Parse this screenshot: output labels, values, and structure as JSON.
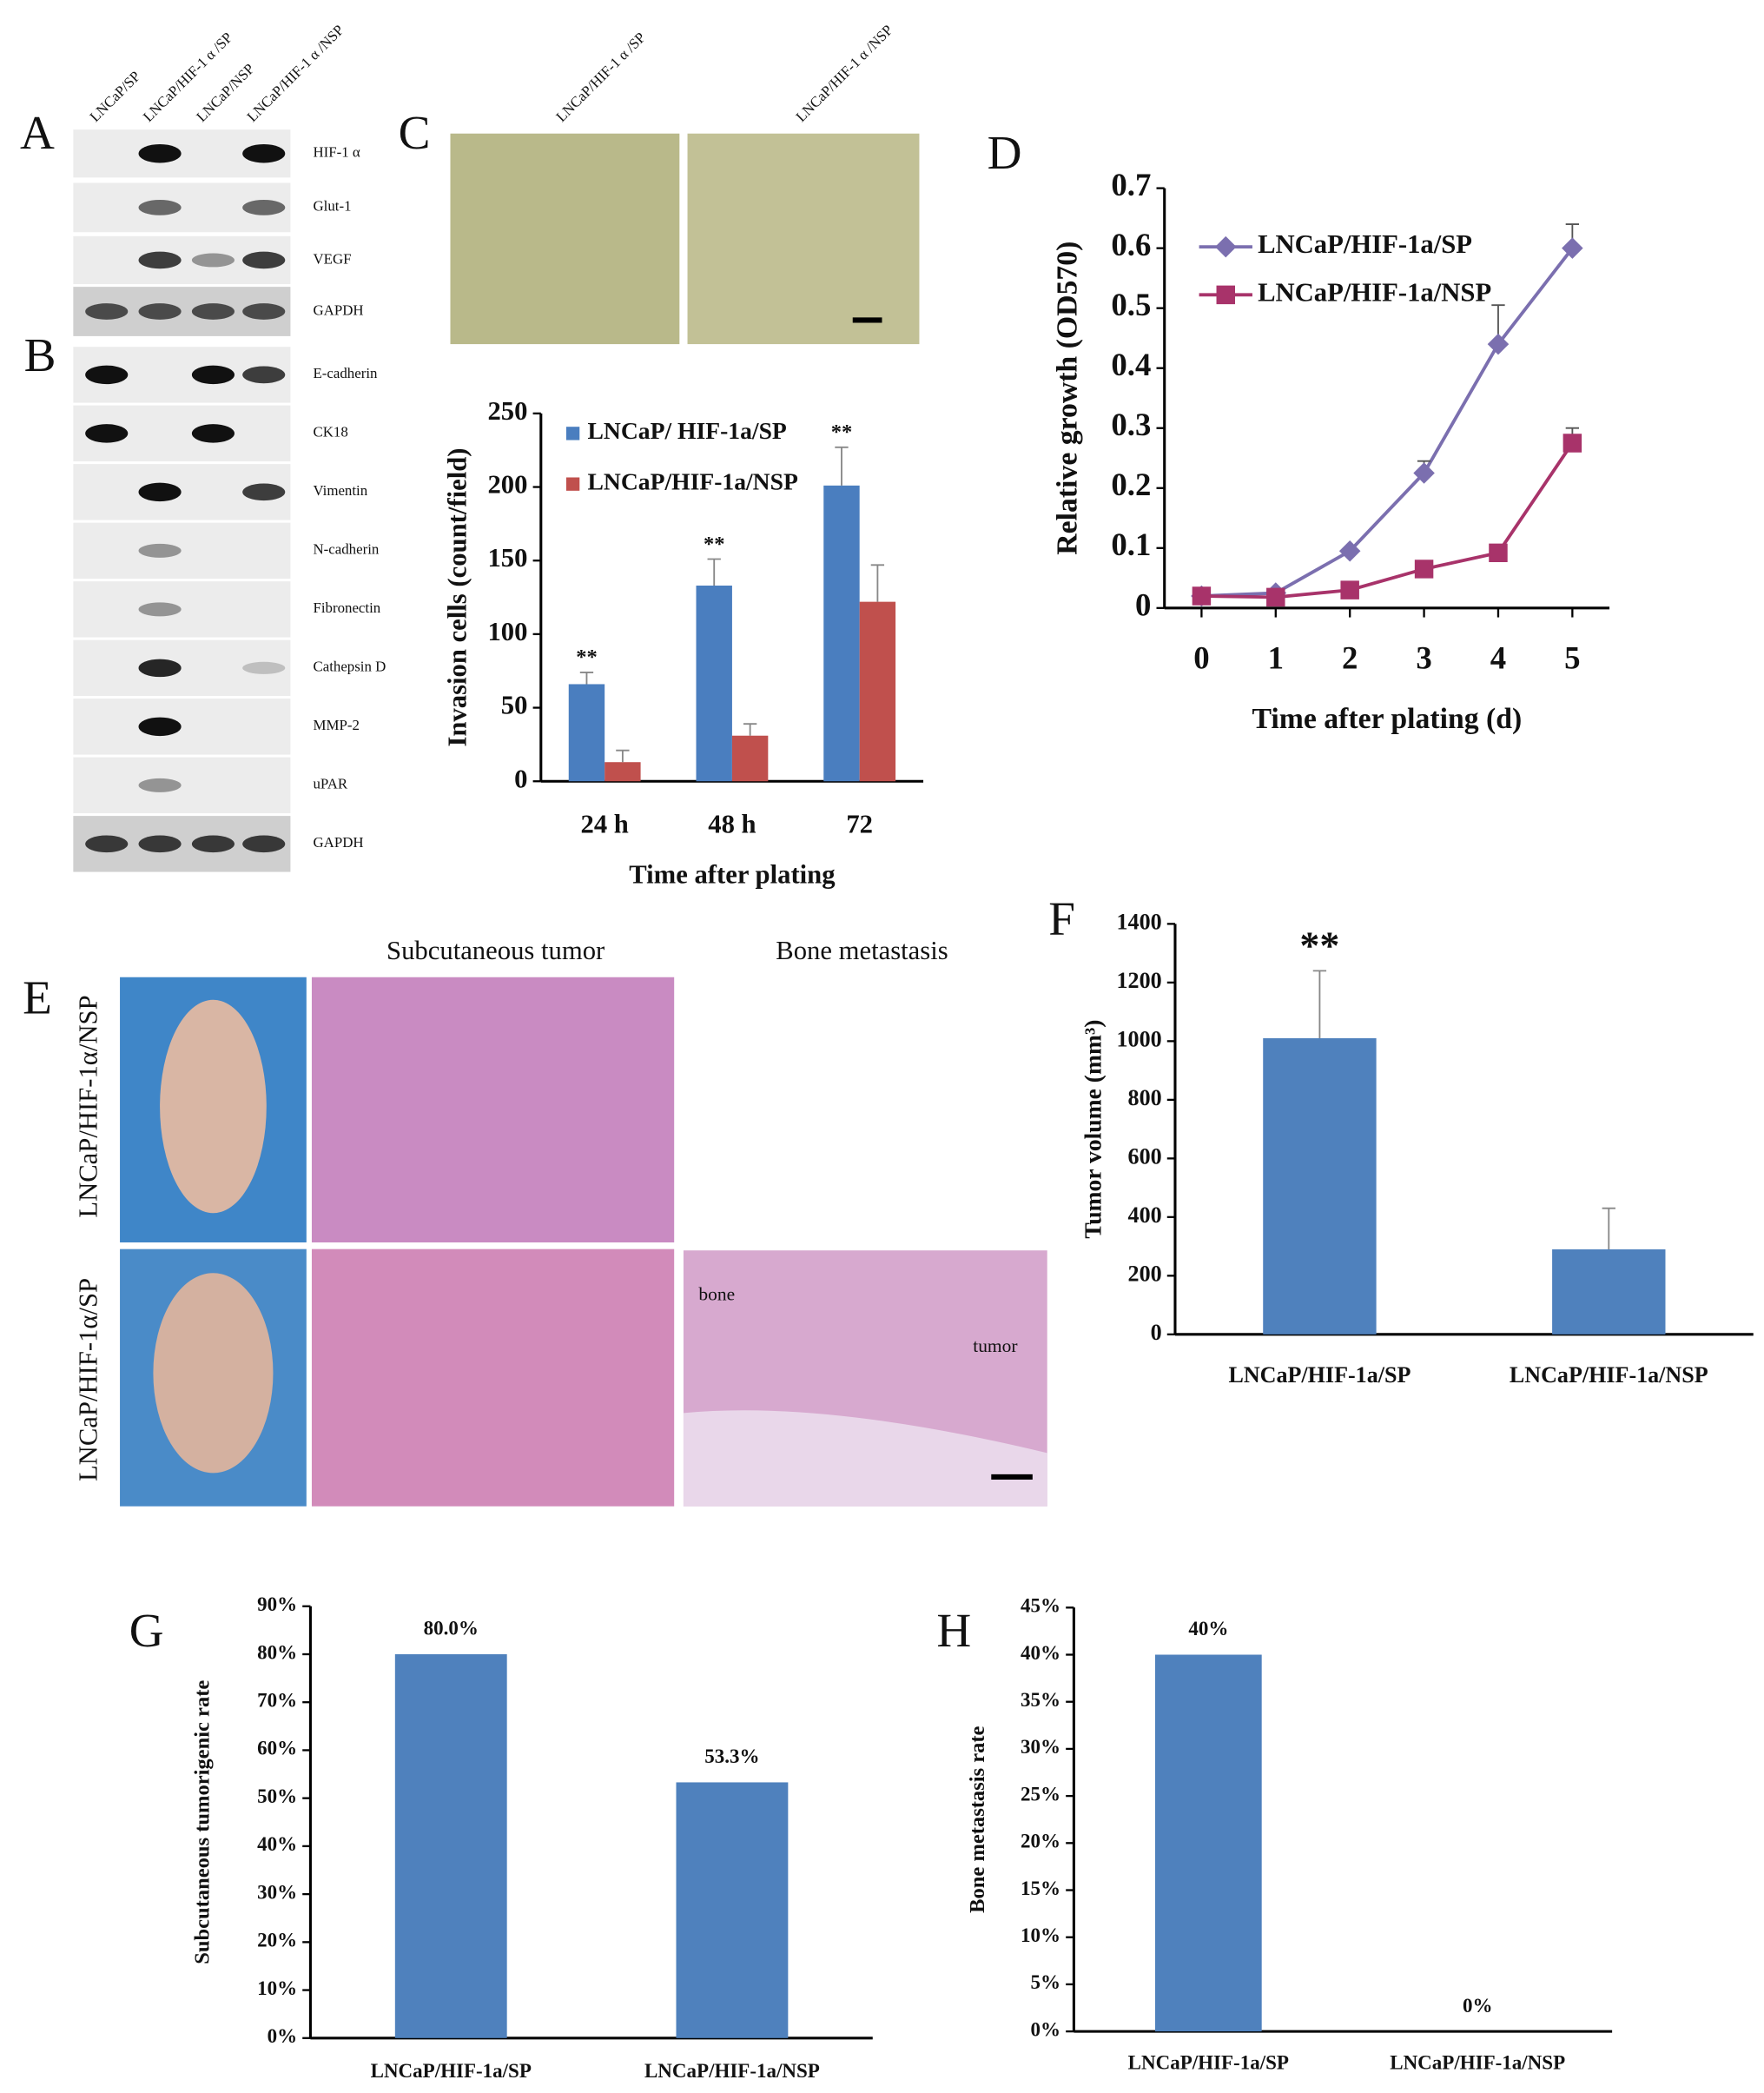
{
  "figure": {
    "panel_a": "A",
    "panel_b": "B",
    "panel_e": "E",
    "lanes": [
      "LNCaP/SP",
      "LNCaP/HIF-1 α /SP",
      "LNCaP/NSP",
      "LNCaP/HIF-1 α /NSP"
    ],
    "a_proteins": [
      "HIF-1 α",
      "Glut-1",
      "VEGF",
      "GAPDH"
    ],
    "b_proteins": [
      "E-cadherin",
      "CK18",
      "Vimentin",
      "N-cadherin",
      "Fibronectin",
      "Cathepsin D",
      "MMP-2",
      "uPAR",
      "GAPDH"
    ],
    "c_images": [
      "LNCaP/HIF-1 α /SP",
      "LNCaP/HIF-1 α /NSP"
    ],
    "e_columns": [
      "Subcutaneous tumor",
      "Bone metastasis"
    ],
    "e_rows": [
      "LNCaP/HIF-1α/NSP",
      "LNCaP/HIF-1α/SP"
    ],
    "e_image_labels": [
      "bone",
      "tumor"
    ]
  },
  "chart_data": [
    {
      "type": "bar",
      "panel": "C",
      "y_label": "Invasion cells (count/field)",
      "x_label": "Time after plating",
      "categories": [
        "24 h",
        "48 h",
        "72"
      ],
      "series": [
        {
          "name": "LNCaP/ HIF-1a/SP",
          "color": "#4a7ebf",
          "values": [
            66,
            133,
            201
          ],
          "errors": [
            8,
            18,
            26
          ]
        },
        {
          "name": "LNCaP/HIF-1a/NSP",
          "color": "#c0504d",
          "values": [
            13,
            31,
            122
          ],
          "errors": [
            8,
            8,
            25
          ]
        }
      ],
      "annotations": [
        "**",
        "**",
        "**"
      ],
      "ylim": [
        0,
        250
      ],
      "yticks": [
        0,
        50,
        100,
        150,
        200,
        250
      ],
      "legend": "upper left"
    },
    {
      "type": "line",
      "panel": "D",
      "y_label": "Relative growth (OD570)",
      "x_label": "Time after plating (d)",
      "x": [
        0,
        1,
        2,
        3,
        4,
        5
      ],
      "series": [
        {
          "name": "LNCaP/HIF-1a/SP",
          "color": "#7b6faf",
          "marker": "diamond",
          "values": [
            0.02,
            0.025,
            0.095,
            0.225,
            0.44,
            0.6
          ],
          "errors": [
            null,
            null,
            null,
            0.02,
            0.065,
            0.04
          ]
        },
        {
          "name": "LNCaP/HIF-1a/NSP",
          "color": "#a8336a",
          "marker": "square",
          "values": [
            0.02,
            0.018,
            0.03,
            0.065,
            0.092,
            0.275
          ],
          "errors": [
            null,
            null,
            null,
            null,
            null,
            0.025
          ]
        }
      ],
      "xlim": [
        -0.5,
        5.5
      ],
      "xticks": [
        0,
        1,
        2,
        3,
        4,
        5
      ],
      "ylim": [
        0,
        0.7
      ],
      "yticks": [
        0,
        0.1,
        0.2,
        0.3,
        0.4,
        0.5,
        0.6,
        0.7
      ],
      "legend": "upper left"
    },
    {
      "type": "bar",
      "panel": "F",
      "y_label": "Tumor volume (mm³)",
      "categories": [
        "LNCaP/HIF-1a/SP",
        "LNCaP/HIF-1a/NSP"
      ],
      "color": "#4f81bd",
      "values": [
        1010,
        290
      ],
      "errors": [
        230,
        140
      ],
      "annotations": [
        "**"
      ],
      "ylim": [
        0,
        1400
      ],
      "yticks": [
        0,
        200,
        400,
        600,
        800,
        1000,
        1200,
        1400
      ]
    },
    {
      "type": "bar",
      "panel": "G",
      "y_label": "Subcutaneous tumorigenic rate",
      "categories": [
        "LNCaP/HIF-1a/SP",
        "LNCaP/HIF-1a/NSP"
      ],
      "color": "#4f81bd",
      "values": [
        80,
        53.3
      ],
      "value_labels": [
        "80.0%",
        "53.3%"
      ],
      "ylim": [
        0,
        90
      ],
      "yticks": [
        {
          "value": 0,
          "label": "0%"
        },
        {
          "value": 10,
          "label": "10%"
        },
        {
          "value": 20,
          "label": "20%"
        },
        {
          "value": 30,
          "label": "30%"
        },
        {
          "value": 40,
          "label": "40%"
        },
        {
          "value": 50,
          "label": "50%"
        },
        {
          "value": 60,
          "label": "60%"
        },
        {
          "value": 70,
          "label": "70%"
        },
        {
          "value": 80,
          "label": "80%"
        },
        {
          "value": 90,
          "label": "90%"
        }
      ]
    },
    {
      "type": "bar",
      "panel": "H",
      "y_label": "Bone metastasis rate",
      "categories": [
        "LNCaP/HIF-1a/SP",
        "LNCaP/HIF-1a/NSP"
      ],
      "color": "#4f81bd",
      "values": [
        40,
        0
      ],
      "value_labels": [
        "40%",
        "0%"
      ],
      "ylim": [
        0,
        45
      ],
      "yticks": [
        {
          "value": 0,
          "label": "0%"
        },
        {
          "value": 5,
          "label": "5%"
        },
        {
          "value": 10,
          "label": "10%"
        },
        {
          "value": 15,
          "label": "15%"
        },
        {
          "value": 20,
          "label": "20%"
        },
        {
          "value": 25,
          "label": "25%"
        },
        {
          "value": 30,
          "label": "30%"
        },
        {
          "value": 35,
          "label": "35%"
        },
        {
          "value": 40,
          "label": "40%"
        },
        {
          "value": 45,
          "label": "45%"
        }
      ]
    }
  ]
}
